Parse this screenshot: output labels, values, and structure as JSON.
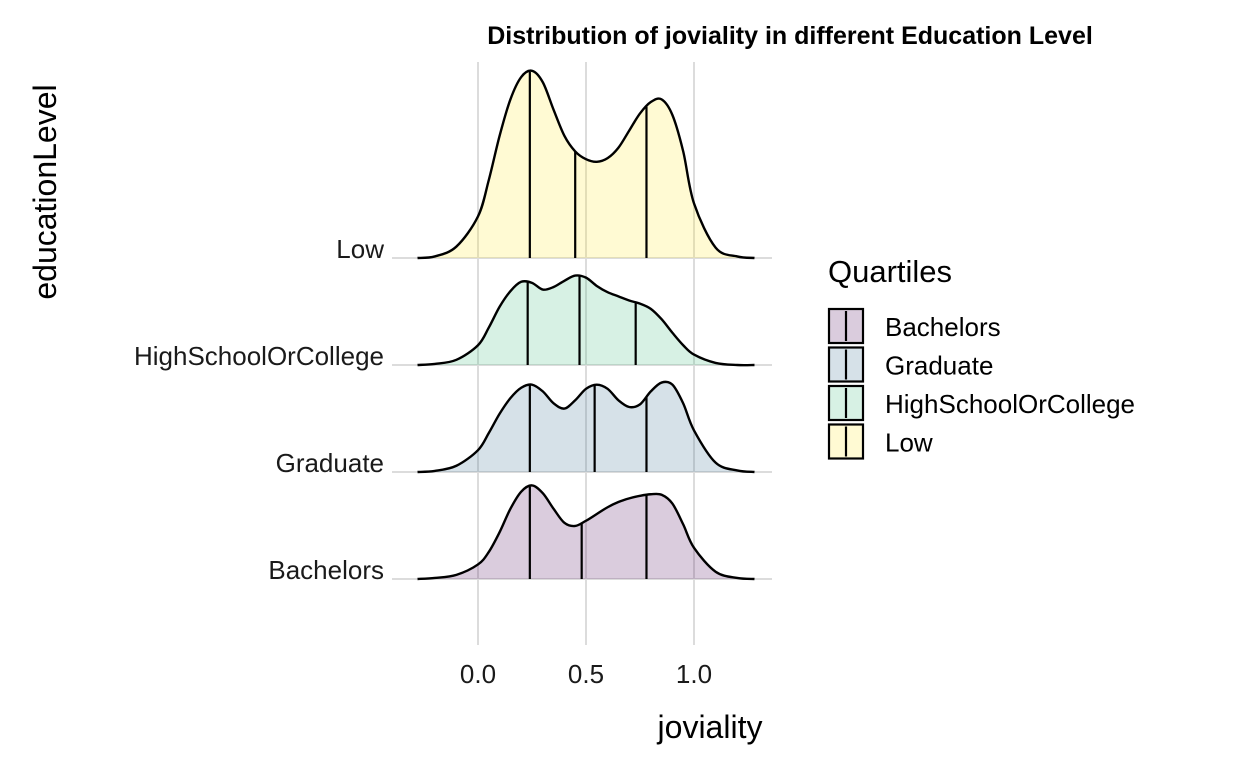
{
  "chart_data": {
    "type": "ridgeline",
    "title": "Distribution of joviality in different Education Level",
    "xlabel": "joviality",
    "ylabel": "educationLevel",
    "xlim": [
      -0.28,
      1.35
    ],
    "x_ticks": [
      0.0,
      0.5,
      1.0
    ],
    "x_tick_labels": [
      "0.0",
      "0.5",
      "1.0"
    ],
    "grid": true,
    "legend": {
      "title": "Quartiles",
      "position": "right"
    },
    "categories": [
      "Bachelors",
      "Graduate",
      "HighSchoolOrCollege",
      "Low"
    ],
    "series": [
      {
        "name": "Bachelors",
        "color": "#440154",
        "quartiles": [
          0.24,
          0.48,
          0.78
        ],
        "density_x": [
          -0.28,
          -0.2,
          -0.1,
          0.0,
          0.05,
          0.1,
          0.15,
          0.2,
          0.25,
          0.3,
          0.35,
          0.4,
          0.45,
          0.5,
          0.55,
          0.6,
          0.65,
          0.7,
          0.75,
          0.8,
          0.85,
          0.9,
          0.95,
          1.0,
          1.1,
          1.2,
          1.28
        ],
        "density_y": [
          0.0,
          0.02,
          0.08,
          0.28,
          0.52,
          0.9,
          1.35,
          1.68,
          1.8,
          1.65,
          1.35,
          1.08,
          1.02,
          1.12,
          1.25,
          1.38,
          1.48,
          1.55,
          1.6,
          1.63,
          1.62,
          1.45,
          1.05,
          0.6,
          0.14,
          0.02,
          0.0
        ]
      },
      {
        "name": "Graduate",
        "color": "#31688e",
        "quartiles": [
          0.24,
          0.54,
          0.78
        ],
        "density_x": [
          -0.28,
          -0.2,
          -0.1,
          0.0,
          0.05,
          0.1,
          0.15,
          0.2,
          0.25,
          0.3,
          0.35,
          0.4,
          0.45,
          0.5,
          0.55,
          0.6,
          0.65,
          0.7,
          0.75,
          0.8,
          0.85,
          0.9,
          0.95,
          1.0,
          1.1,
          1.2,
          1.28
        ],
        "density_y": [
          0.0,
          0.02,
          0.12,
          0.42,
          0.75,
          1.12,
          1.42,
          1.62,
          1.68,
          1.55,
          1.32,
          1.22,
          1.38,
          1.6,
          1.68,
          1.6,
          1.38,
          1.25,
          1.3,
          1.55,
          1.72,
          1.68,
          1.32,
          0.8,
          0.18,
          0.03,
          0.0
        ]
      },
      {
        "name": "HighSchoolOrCollege",
        "color": "#35b779",
        "quartiles": [
          0.23,
          0.47,
          0.73
        ],
        "density_x": [
          -0.28,
          -0.2,
          -0.1,
          0.0,
          0.05,
          0.1,
          0.15,
          0.2,
          0.25,
          0.3,
          0.35,
          0.4,
          0.45,
          0.5,
          0.55,
          0.6,
          0.65,
          0.7,
          0.75,
          0.8,
          0.85,
          0.9,
          0.95,
          1.0,
          1.1,
          1.2,
          1.28
        ],
        "density_y": [
          0.0,
          0.02,
          0.1,
          0.38,
          0.72,
          1.12,
          1.42,
          1.6,
          1.58,
          1.45,
          1.5,
          1.62,
          1.72,
          1.68,
          1.52,
          1.4,
          1.32,
          1.24,
          1.18,
          1.08,
          0.88,
          0.62,
          0.38,
          0.2,
          0.04,
          0.0,
          0.0
        ]
      },
      {
        "name": "Low",
        "color": "#fde725",
        "quartiles": [
          0.24,
          0.45,
          0.78
        ],
        "density_x": [
          -0.28,
          -0.2,
          -0.1,
          0.0,
          0.05,
          0.1,
          0.15,
          0.2,
          0.25,
          0.3,
          0.35,
          0.4,
          0.45,
          0.5,
          0.55,
          0.6,
          0.65,
          0.7,
          0.75,
          0.8,
          0.85,
          0.9,
          0.95,
          1.0,
          1.1,
          1.2,
          1.28
        ],
        "density_y": [
          0.0,
          0.03,
          0.22,
          0.8,
          1.5,
          2.35,
          3.05,
          3.48,
          3.6,
          3.38,
          2.85,
          2.35,
          2.05,
          1.9,
          1.85,
          1.92,
          2.12,
          2.45,
          2.78,
          3.0,
          3.05,
          2.75,
          2.05,
          1.05,
          0.2,
          0.03,
          0.0
        ]
      }
    ]
  }
}
